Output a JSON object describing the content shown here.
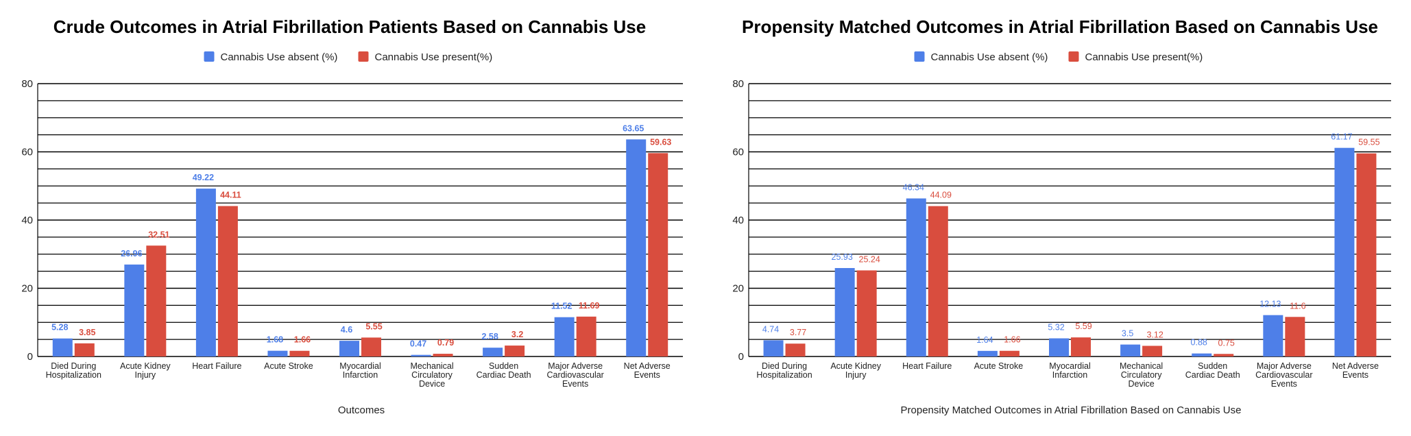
{
  "chart_data": [
    {
      "type": "bar",
      "title": "Crude Outcomes in Atrial Fibrillation Patients Based on Cannabis Use",
      "xlabel": "Outcomes",
      "ylabel": "",
      "ylim": [
        0,
        80
      ],
      "yticks": [
        0,
        20,
        40,
        60,
        80
      ],
      "legend_position": "top",
      "categories": [
        "Died During Hospitalization",
        "Acute Kidney Injury",
        "Heart Failure",
        "Acute Stroke",
        "Myocardial Infarction",
        "Mechanical Circulatory Device",
        "Sudden Cardiac Death",
        "Major Adverse Cardiovascular Events",
        "Net Adverse Events"
      ],
      "series": [
        {
          "name": "Cannabis Use absent (%)",
          "color": "#4e7fe8",
          "values": [
            5.28,
            26.96,
            49.22,
            1.68,
            4.6,
            0.47,
            2.58,
            11.52,
            63.65
          ]
        },
        {
          "name": "Cannabis Use present(%)",
          "color": "#d94d3e",
          "values": [
            3.85,
            32.51,
            44.11,
            1.66,
            5.55,
            0.79,
            3.2,
            11.69,
            59.63
          ]
        }
      ]
    },
    {
      "type": "bar",
      "title": "Propensity Matched Outcomes in Atrial Fibrillation Based on Cannabis Use",
      "xlabel": "Propensity Matched Outcomes in Atrial Fibrillation Based on Cannabis Use",
      "ylabel": "",
      "ylim": [
        0,
        80
      ],
      "yticks": [
        0,
        20,
        40,
        60,
        80
      ],
      "legend_position": "top",
      "categories": [
        "Died During Hospitalization",
        "Acute Kidney Injury",
        "Heart Failure",
        "Acute Stroke",
        "Myocardial Infarction",
        "Mechanical Circulatory Device",
        "Sudden Cardiac Death",
        "Major Adverse Cardiovascular Events",
        "Net Adverse Events"
      ],
      "series": [
        {
          "name": "Cannabis Use absent (%)",
          "color": "#4e7fe8",
          "values": [
            4.74,
            25.93,
            46.34,
            1.64,
            5.32,
            3.5,
            0.88,
            12.13,
            61.17
          ]
        },
        {
          "name": "Cannabis Use present(%)",
          "color": "#d94d3e",
          "values": [
            3.77,
            25.24,
            44.09,
            1.66,
            5.59,
            3.12,
            0.75,
            11.6,
            59.55
          ]
        }
      ]
    }
  ]
}
